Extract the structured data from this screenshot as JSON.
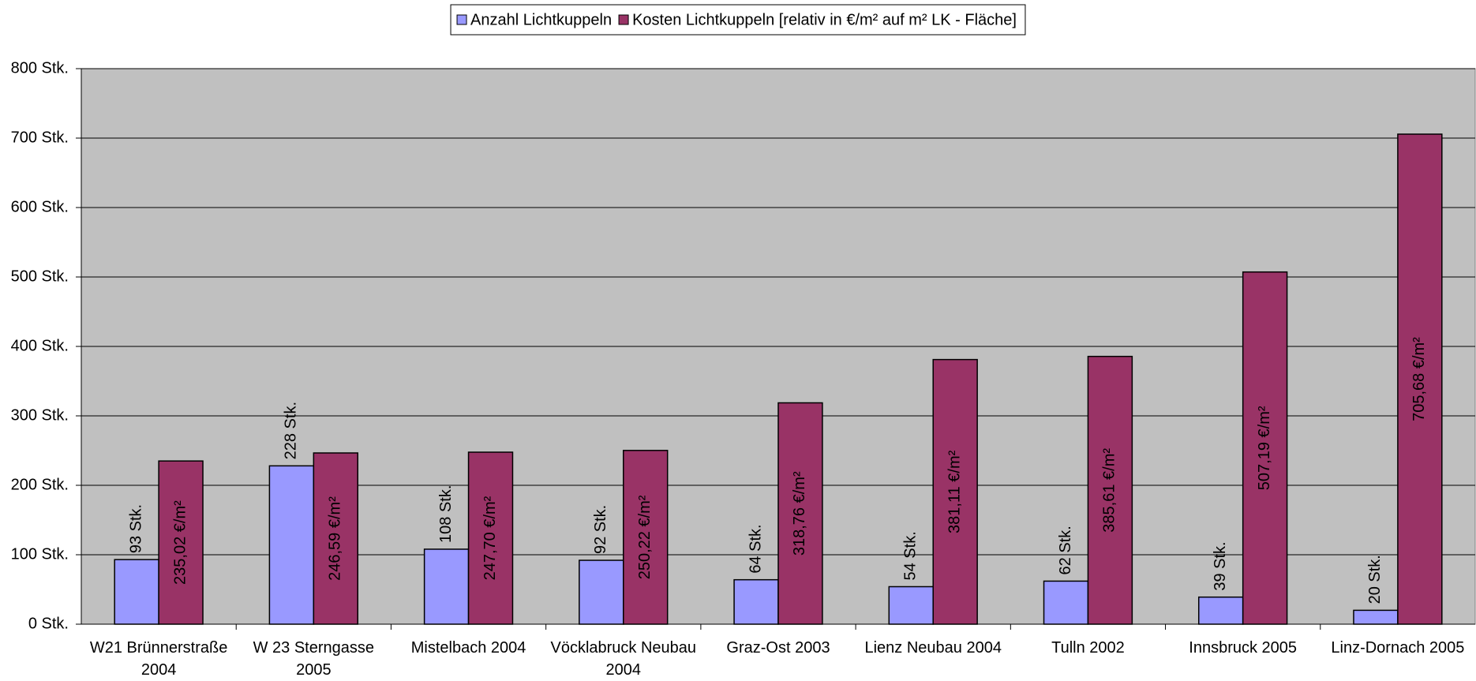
{
  "chart_data": {
    "type": "bar",
    "categories": [
      "W21 Brünnerstraße 2004",
      "W 23 Sterngasse 2005",
      "Mistelbach 2004",
      "Vöcklabruck Neubau 2004",
      "Graz-Ost 2003",
      "Lienz Neubau 2004",
      "Tulln 2002",
      "Innsbruck 2005",
      "Linz-Dornach 2005"
    ],
    "series": [
      {
        "name": "Anzahl Lichtkuppeln",
        "color": "#9999ff",
        "values": [
          93,
          228,
          108,
          92,
          64,
          54,
          62,
          39,
          20
        ],
        "value_labels": [
          "93 Stk.",
          "228 Stk.",
          "108 Stk.",
          "92 Stk.",
          "64 Stk.",
          "54 Stk.",
          "62 Stk.",
          "39 Stk.",
          "20 Stk."
        ]
      },
      {
        "name": "Kosten Lichtkuppeln [relativ in €/m² auf m² LK - Fläche]",
        "color": "#993366",
        "values": [
          235.02,
          246.59,
          247.7,
          250.22,
          318.76,
          381.11,
          385.61,
          507.19,
          705.68
        ],
        "value_labels": [
          "235,02 €/m²",
          "246,59 €/m²",
          "247,70 €/m²",
          "250,22 €/m²",
          "318,76 €/m²",
          "381,11 €/m²",
          "385,61 €/m²",
          "507,19 €/m²",
          "705,68 €/m²"
        ]
      }
    ],
    "ylim": [
      0,
      800
    ],
    "yticks": [
      {
        "value": 0,
        "label": "0 Stk."
      },
      {
        "value": 100,
        "label": "100 Stk."
      },
      {
        "value": 200,
        "label": "200 Stk."
      },
      {
        "value": 300,
        "label": "300 Stk."
      },
      {
        "value": 400,
        "label": "400 Stk."
      },
      {
        "value": 500,
        "label": "500 Stk."
      },
      {
        "value": 600,
        "label": "600 Stk."
      },
      {
        "value": 700,
        "label": "700 Stk."
      },
      {
        "value": 800,
        "label": "800 Stk."
      }
    ],
    "grid": true,
    "legend": "top",
    "plot_background": "#c0c0c0"
  }
}
